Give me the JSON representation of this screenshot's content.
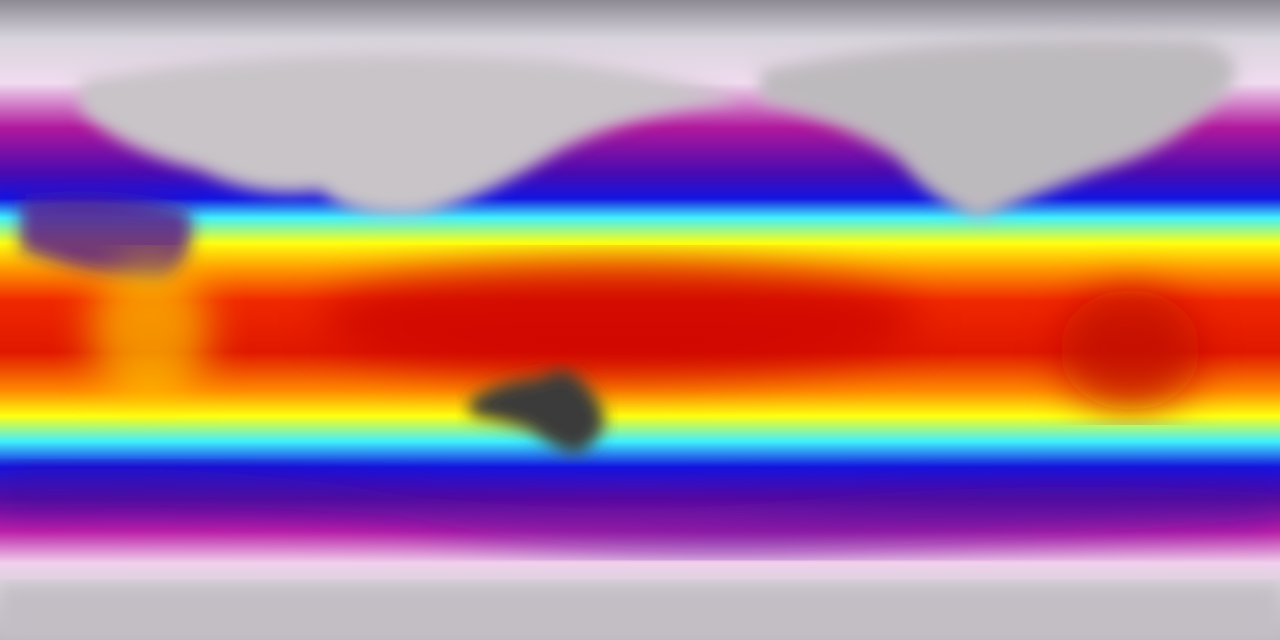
{
  "map": {
    "projection": "equirectangular",
    "palette": {
      "polar": "#c8c4cc",
      "cold_white": "#f2e6f2",
      "magenta": "#b0189c",
      "purple": "#6a0aa0",
      "blue": "#1414e0",
      "cyan": "#40f0ff",
      "yellow": "#ffff10",
      "orange": "#ff9a00",
      "red": "#f02800",
      "dark_red": "#b00000",
      "land_hot": "#3a3a3a"
    }
  }
}
